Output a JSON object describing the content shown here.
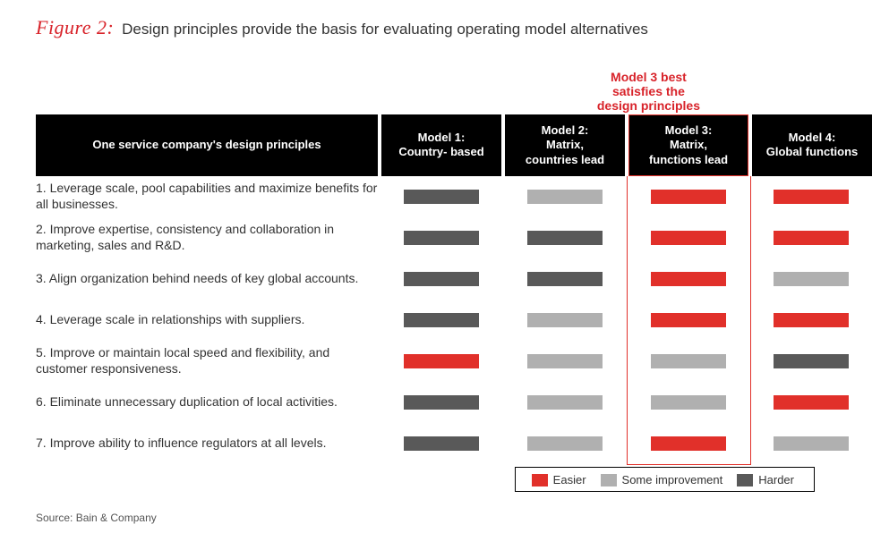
{
  "colors": {
    "accent_red": "#d8232a",
    "header_black": "#000000",
    "swatch_easier": "#e1302a",
    "swatch_some": "#b0b0b0",
    "swatch_harder": "#595959",
    "highlight_border": "#e1302a",
    "text": "#333333"
  },
  "figure": {
    "label": "Figure 2:",
    "title": "Design principles provide the basis for evaluating operating model alternatives"
  },
  "callout": "Model 3 best satisfies the design principles",
  "table": {
    "row_header": "One service company's design principles",
    "columns": [
      "Model 1: Country- based",
      "Model 2: Matrix, countries lead",
      "Model 3: Matrix, functions lead",
      "Model 4: Global functions"
    ],
    "highlight_col_index": 2,
    "rows": [
      {
        "label": "1. Leverage scale, pool capabilities and maximize benefits for all businesses.",
        "cells": [
          "harder",
          "some",
          "easier",
          "easier"
        ]
      },
      {
        "label": "2. Improve expertise, consistency and collaboration in marketing, sales and R&D.",
        "cells": [
          "harder",
          "harder",
          "easier",
          "easier"
        ]
      },
      {
        "label": "3. Align organization behind needs of key global accounts.",
        "cells": [
          "harder",
          "harder",
          "easier",
          "some"
        ]
      },
      {
        "label": "4. Leverage scale in relationships with suppliers.",
        "cells": [
          "harder",
          "some",
          "easier",
          "easier"
        ]
      },
      {
        "label": "5. Improve or maintain local speed and flexibility, and customer responsiveness.",
        "cells": [
          "easier",
          "some",
          "some",
          "harder"
        ]
      },
      {
        "label": "6. Eliminate unnecessary duplication of local activities.",
        "cells": [
          "harder",
          "some",
          "some",
          "easier"
        ]
      },
      {
        "label": "7. Improve ability to influence regulators at all levels.",
        "cells": [
          "harder",
          "some",
          "easier",
          "some"
        ]
      }
    ]
  },
  "legend": {
    "items": [
      {
        "key": "easier",
        "label": "Easier"
      },
      {
        "key": "some",
        "label": "Some improvement"
      },
      {
        "key": "harder",
        "label": "Harder"
      }
    ]
  },
  "source": "Source: Bain & Company"
}
